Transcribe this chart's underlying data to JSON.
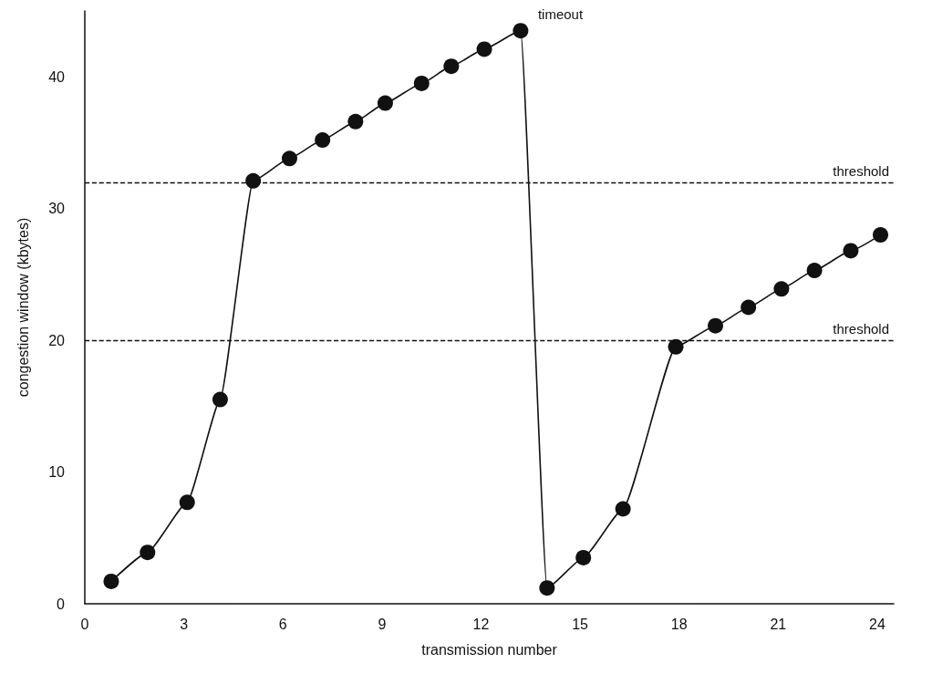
{
  "chart_data": {
    "type": "line",
    "xlabel": "transmission number",
    "ylabel": "congestion window (kbytes)",
    "x": [
      0.8,
      1.9,
      3.1,
      4.1,
      5.1,
      6.2,
      7.2,
      8.2,
      9.1,
      10.2,
      11.1,
      12.1,
      13.2,
      14.0,
      15.1,
      16.3,
      17.9,
      19.1,
      20.1,
      21.1,
      22.1,
      23.2,
      24.1
    ],
    "series": [
      {
        "color": "#111111",
        "values": [
          1.7,
          3.9,
          7.7,
          15.5,
          32.1,
          33.8,
          35.2,
          36.6,
          38.0,
          39.5,
          40.8,
          42.1,
          43.5,
          1.2,
          3.5,
          7.2,
          19.5,
          21.1,
          22.5,
          23.9,
          25.3,
          26.8,
          28.0
        ]
      }
    ],
    "xlim": [
      0,
      24.5
    ],
    "xticks": [
      0,
      3,
      6,
      9,
      12,
      15,
      18,
      21,
      24
    ],
    "ylim": [
      0,
      45
    ],
    "yticks": [
      0,
      10,
      20,
      30,
      40
    ],
    "ref_lines": [
      {
        "axis": "y",
        "value": 32,
        "label": "threshold",
        "line_style": "dashed"
      },
      {
        "axis": "y",
        "value": 20,
        "label": "threshold",
        "line_style": "dashed"
      }
    ],
    "annotations": [
      {
        "text": "timeout",
        "x": 13.2,
        "y": 43.5
      }
    ],
    "grid": false,
    "marker": "circle",
    "line_style": "solid"
  }
}
